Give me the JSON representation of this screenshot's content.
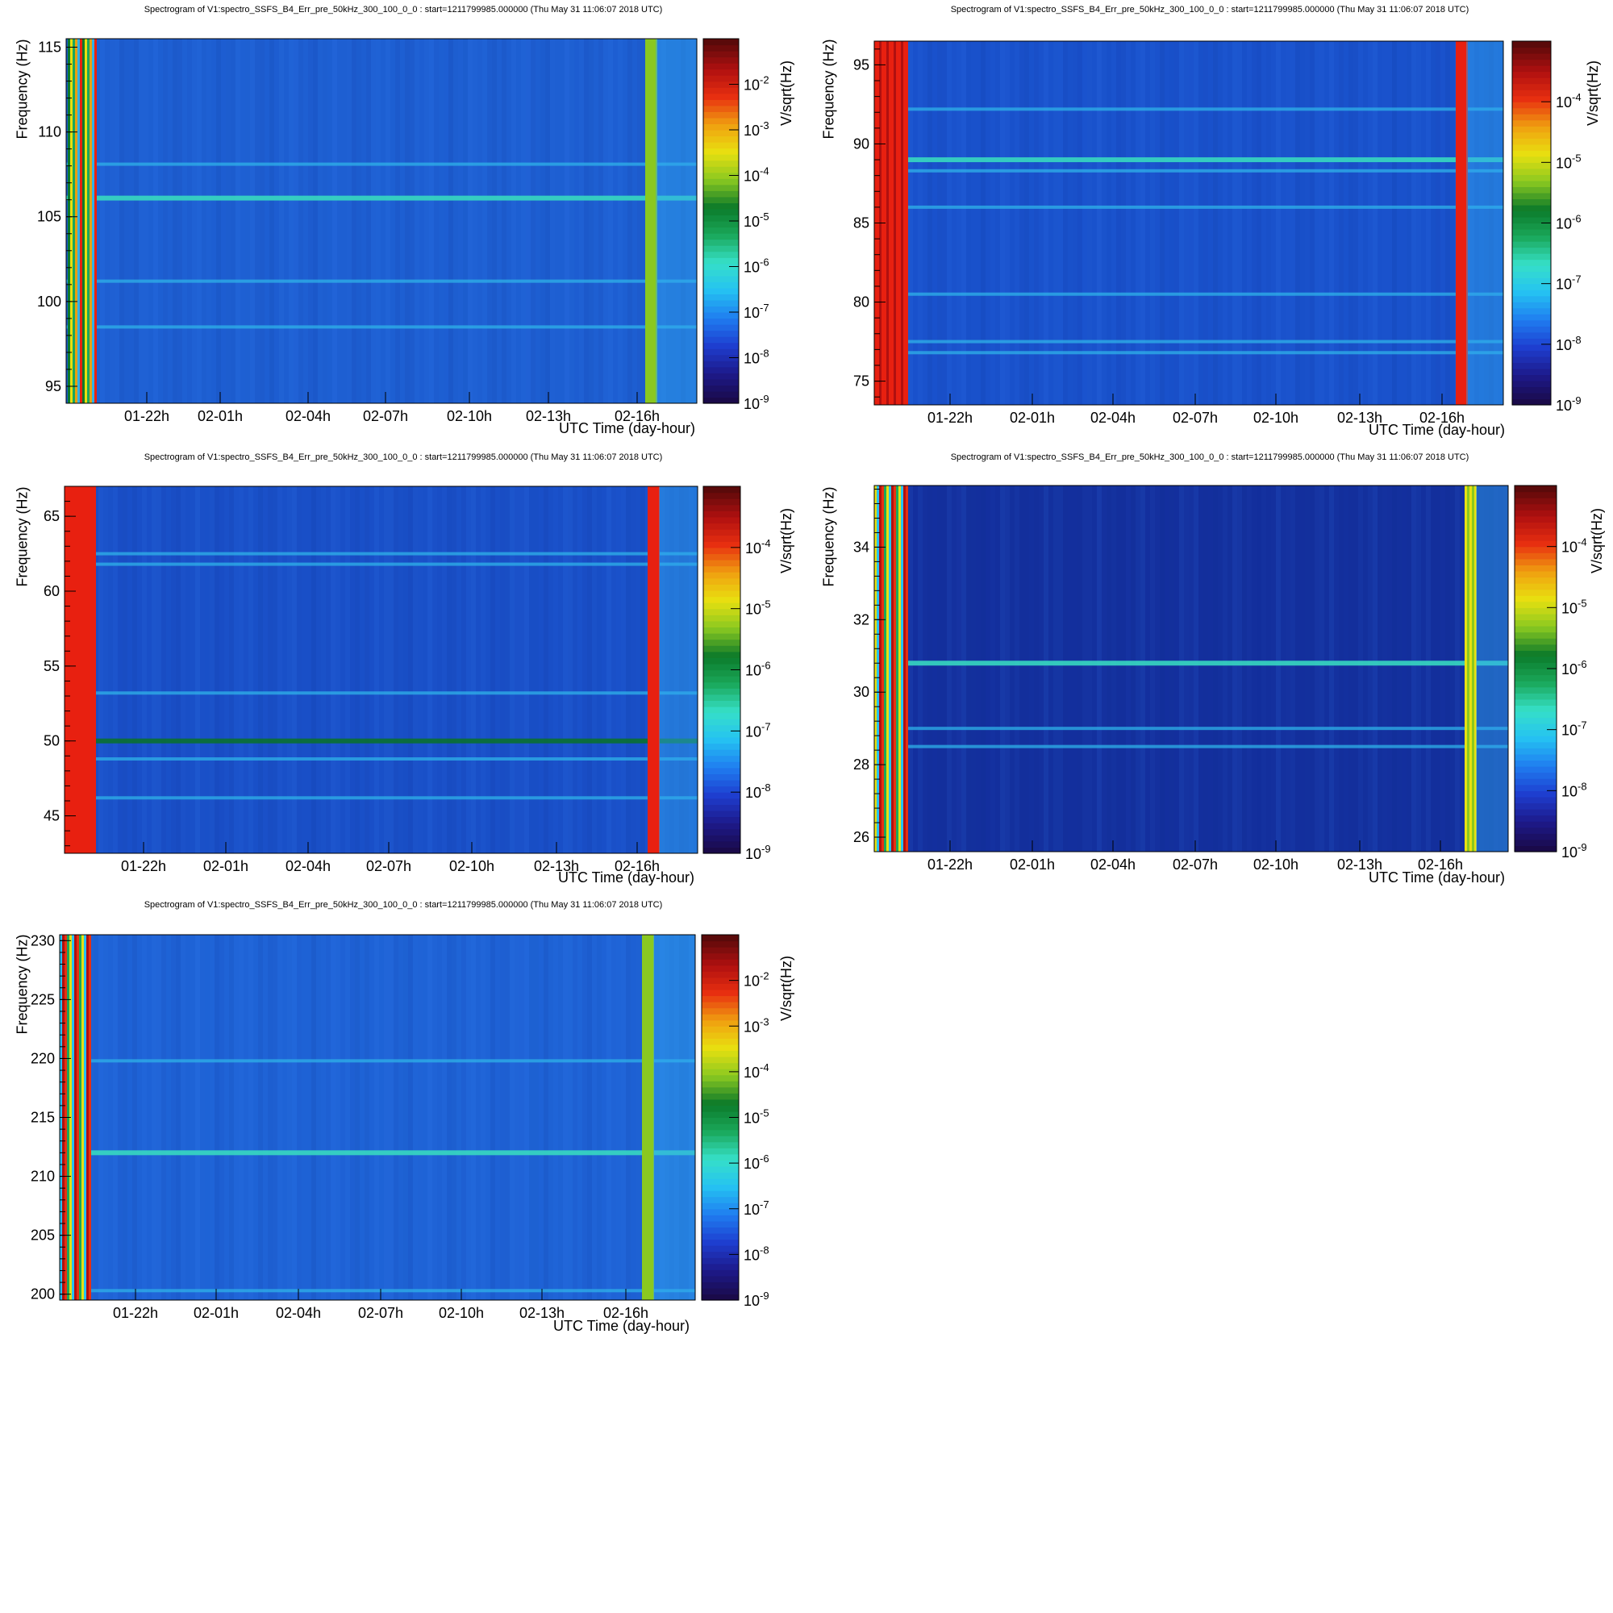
{
  "chart_data": [
    {
      "type": "heatmap",
      "title": "Spectrogram of V1:spectro_SSFS_B4_Err_pre_50kHz_300_100_0_0 : start=1211799985.000000 (Thu May 31 11:06:07 2018 UTC)",
      "xlabel": "UTC Time (day-hour)",
      "ylabel": "Frequency (Hz)",
      "zlabel": "V/sqrt(Hz)",
      "x_ticks": [
        "01-22h",
        "02-01h",
        "02-04h",
        "02-07h",
        "02-10h",
        "02-13h",
        "02-16h"
      ],
      "y_ticks": [
        95,
        100,
        105,
        110,
        115
      ],
      "ylim": [
        94,
        115.5
      ],
      "z_ticks": [
        "10^-9",
        "10^-8",
        "10^-7",
        "10^-6",
        "10^-5",
        "10^-4",
        "10^-3",
        "10^-2"
      ],
      "zlim": [
        1e-09,
        0.1
      ],
      "lines_hz": [
        106.1,
        101.2,
        98.5,
        108.1
      ],
      "background": "#1e5fd2"
    },
    {
      "type": "heatmap",
      "title": "Spectrogram of V1:spectro_SSFS_B4_Err_pre_50kHz_300_100_0_0 : start=1211799985.000000 (Thu May 31 11:06:07 2018 UTC)",
      "xlabel": "UTC Time (day-hour)",
      "ylabel": "Frequency (Hz)",
      "zlabel": "V/sqrt(Hz)",
      "x_ticks": [
        "01-22h",
        "02-01h",
        "02-04h",
        "02-07h",
        "02-10h",
        "02-13h",
        "02-16h"
      ],
      "y_ticks": [
        75,
        80,
        85,
        90,
        95
      ],
      "ylim": [
        73.5,
        96.5
      ],
      "z_ticks": [
        "10^-9",
        "10^-8",
        "10^-7",
        "10^-6",
        "10^-5",
        "10^-4"
      ],
      "zlim": [
        1e-09,
        0.001
      ],
      "lines_hz": [
        89.0,
        92.2,
        88.3,
        86.0,
        80.5,
        76.8,
        77.5
      ],
      "background": "#1a52cc"
    },
    {
      "type": "heatmap",
      "title": "Spectrogram of V1:spectro_SSFS_B4_Err_pre_50kHz_300_100_0_0 : start=1211799985.000000 (Thu May 31 11:06:07 2018 UTC)",
      "xlabel": "UTC Time (day-hour)",
      "ylabel": "Frequency (Hz)",
      "zlabel": "V/sqrt(Hz)",
      "x_ticks": [
        "01-22h",
        "02-01h",
        "02-04h",
        "02-07h",
        "02-10h",
        "02-13h",
        "02-16h"
      ],
      "y_ticks": [
        45,
        50,
        55,
        60,
        65
      ],
      "ylim": [
        42.5,
        67
      ],
      "z_ticks": [
        "10^-9",
        "10^-8",
        "10^-7",
        "10^-6",
        "10^-5",
        "10^-4"
      ],
      "zlim": [
        1e-09,
        0.001
      ],
      "lines_hz": [
        50.0,
        62.5,
        61.8,
        53.2,
        48.8,
        46.2
      ],
      "background": "#1a50c8"
    },
    {
      "type": "heatmap",
      "title": "Spectrogram of V1:spectro_SSFS_B4_Err_pre_50kHz_300_100_0_0 : start=1211799985.000000 (Thu May 31 11:06:07 2018 UTC)",
      "xlabel": "UTC Time (day-hour)",
      "ylabel": "Frequency (Hz)",
      "zlabel": "V/sqrt(Hz)",
      "x_ticks": [
        "01-22h",
        "02-01h",
        "02-04h",
        "02-07h",
        "02-10h",
        "02-13h",
        "02-16h"
      ],
      "y_ticks": [
        26,
        28,
        30,
        32,
        34
      ],
      "ylim": [
        25.6,
        35.7
      ],
      "z_ticks": [
        "10^-9",
        "10^-8",
        "10^-7",
        "10^-6",
        "10^-5",
        "10^-4"
      ],
      "zlim": [
        1e-09,
        0.001
      ],
      "lines_hz": [
        30.8,
        29.0,
        28.5
      ],
      "background": "#14309e"
    },
    {
      "type": "heatmap",
      "title": "Spectrogram of V1:spectro_SSFS_B4_Err_pre_50kHz_300_100_0_0 : start=1211799985.000000 (Thu May 31 11:06:07 2018 UTC)",
      "xlabel": "UTC Time (day-hour)",
      "ylabel": "Frequency (Hz)",
      "zlabel": "V/sqrt(Hz)",
      "x_ticks": [
        "01-22h",
        "02-01h",
        "02-04h",
        "02-07h",
        "02-10h",
        "02-13h",
        "02-16h"
      ],
      "y_ticks": [
        200,
        205,
        210,
        215,
        220,
        225,
        230
      ],
      "ylim": [
        199.5,
        230.5
      ],
      "z_ticks": [
        "10^-9",
        "10^-8",
        "10^-7",
        "10^-6",
        "10^-5",
        "10^-4",
        "10^-3",
        "10^-2"
      ],
      "zlim": [
        1e-09,
        0.1
      ],
      "lines_hz": [
        212.0,
        219.8,
        200.3
      ],
      "background": "#1f63d6"
    }
  ]
}
